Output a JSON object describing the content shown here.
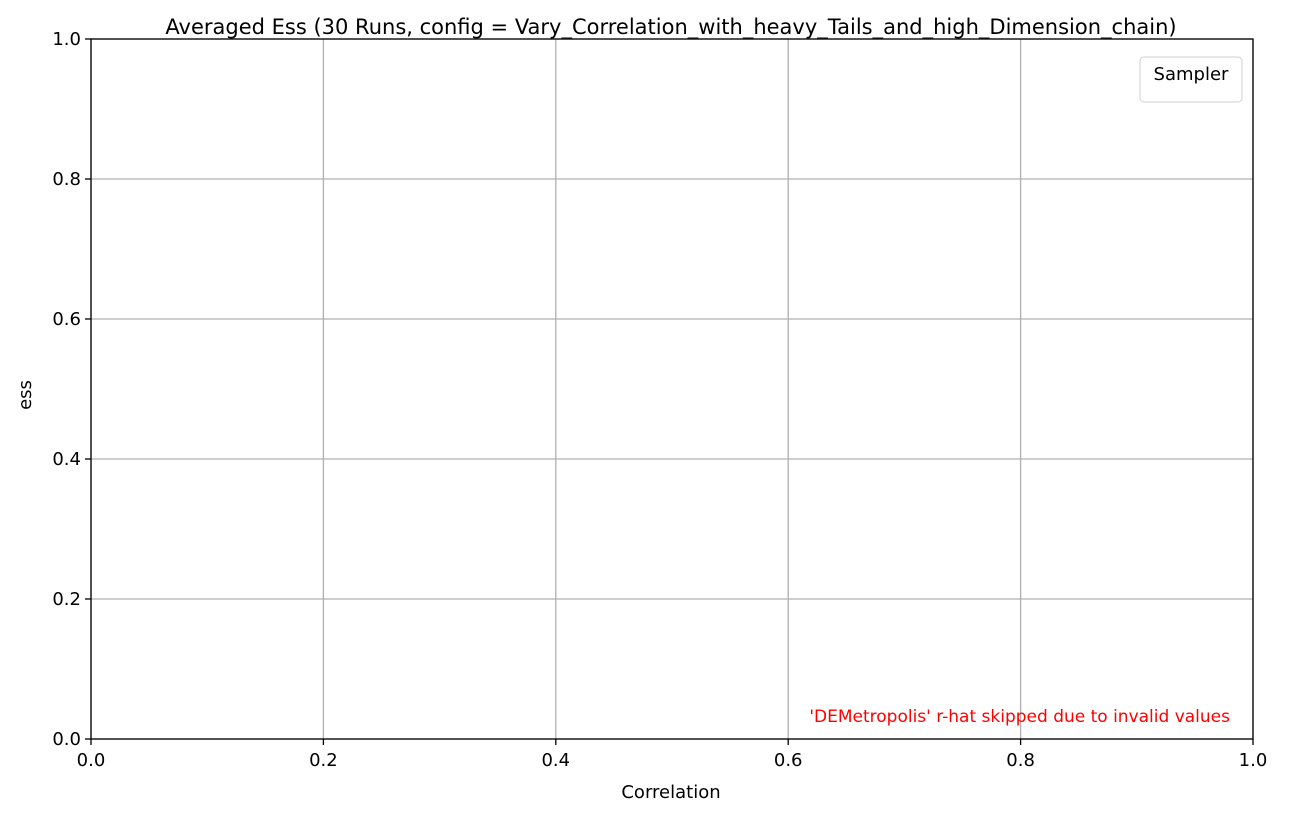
{
  "chart_data": {
    "type": "line",
    "title": "Averaged Ess (30 Runs, config = Vary_Correlation_with_heavy_Tails_and_high_Dimension_chain)",
    "xlabel": "Correlation",
    "ylabel": "ess",
    "xlim": [
      0.0,
      1.0
    ],
    "ylim": [
      0.0,
      1.0
    ],
    "x_ticks": [
      "0.0",
      "0.2",
      "0.4",
      "0.6",
      "0.8",
      "1.0"
    ],
    "y_ticks": [
      "0.0",
      "0.2",
      "0.4",
      "0.6",
      "0.8",
      "1.0"
    ],
    "grid": true,
    "legend": {
      "title": "Sampler",
      "placement": "top-right",
      "entries": []
    },
    "series": [],
    "annotation": {
      "text": "'DEMetropolis' r-hat skipped due to invalid values",
      "color": "#ff0000",
      "placement": "bottom-right"
    }
  }
}
